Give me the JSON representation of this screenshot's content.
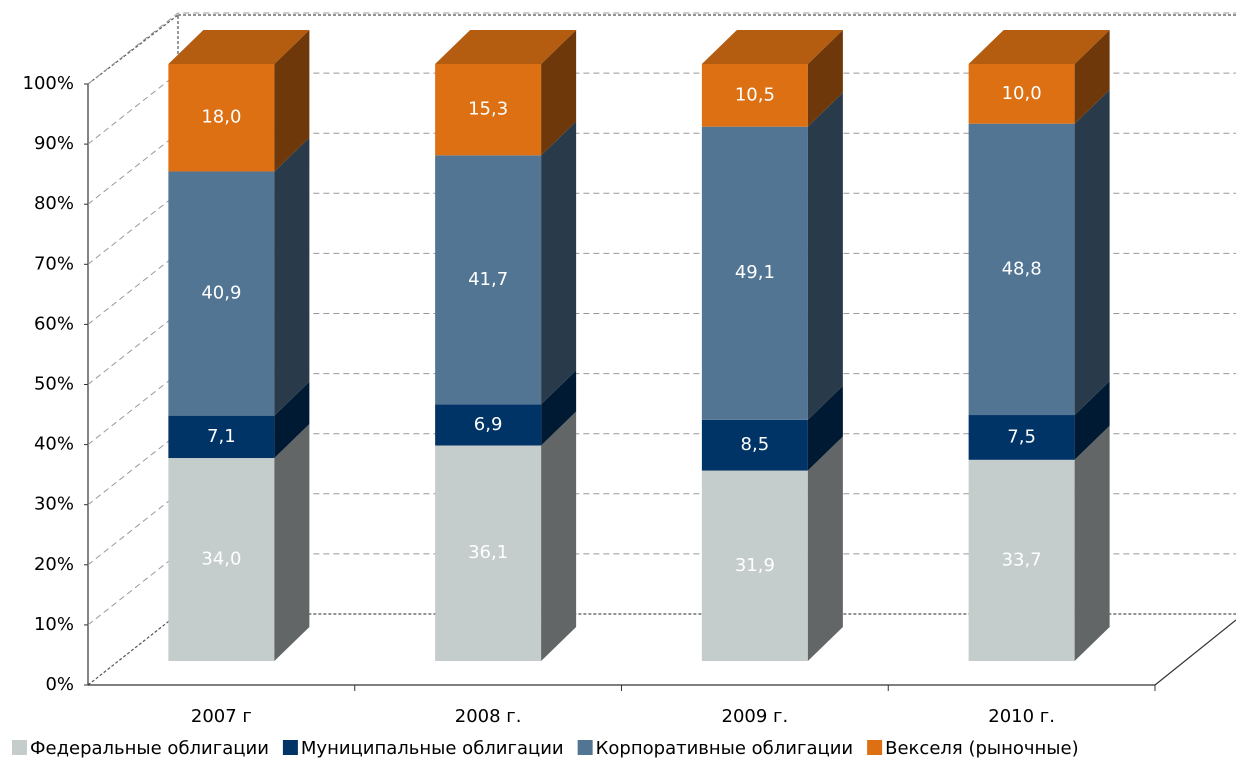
{
  "chart_data": {
    "type": "bar3d_stacked",
    "categories": [
      "2007 г",
      "2008 г.",
      "2009 г.",
      "2010 г."
    ],
    "series": [
      {
        "name": "Федеральные облигации",
        "color": "#c5cccc",
        "values": [
          34.0,
          36.1,
          31.9,
          33.7
        ],
        "value_labels": [
          "34,0",
          "36,1",
          "31,9",
          "33,7"
        ]
      },
      {
        "name": "Муниципальные облигации",
        "color": "#003366",
        "values": [
          7.1,
          6.9,
          8.5,
          7.5
        ],
        "value_labels": [
          "7,1",
          "6,9",
          "8,5",
          "7,5"
        ]
      },
      {
        "name": "Корпоративные облигации",
        "color": "#527594",
        "values": [
          40.9,
          41.7,
          49.1,
          48.8
        ],
        "value_labels": [
          "40,9",
          "41,7",
          "49,1",
          "48,8"
        ]
      },
      {
        "name": "Векселя (рыночные)",
        "color": "#dc7013",
        "values": [
          18.0,
          15.3,
          10.5,
          10.0
        ],
        "value_labels": [
          "18,0",
          "15,3",
          "10,5",
          "10,0"
        ]
      }
    ],
    "ylim": [
      0,
      100
    ],
    "yticks": [
      {
        "value": 0,
        "label": "0%"
      },
      {
        "value": 10,
        "label": "10%"
      },
      {
        "value": 20,
        "label": "20%"
      },
      {
        "value": 30,
        "label": "30%"
      },
      {
        "value": 40,
        "label": "40%"
      },
      {
        "value": 50,
        "label": "50%"
      },
      {
        "value": 60,
        "label": "60%"
      },
      {
        "value": 70,
        "label": "70%"
      },
      {
        "value": 80,
        "label": "80%"
      },
      {
        "value": 90,
        "label": "90%"
      },
      {
        "value": 100,
        "label": "100%"
      }
    ],
    "grid": true
  }
}
